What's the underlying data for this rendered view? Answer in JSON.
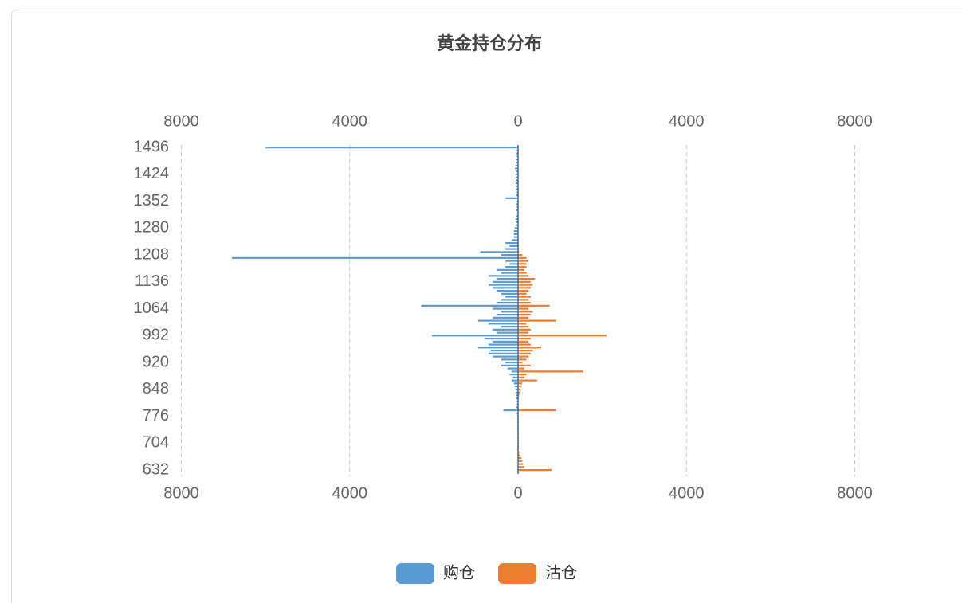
{
  "chart_data": {
    "type": "butterfly",
    "title": "黄金持仓分布",
    "categories": [
      "632",
      null,
      null,
      null,
      null,
      null,
      null,
      null,
      null,
      "704",
      null,
      null,
      null,
      null,
      null,
      null,
      null,
      null,
      "776",
      null,
      null,
      null,
      null,
      null,
      null,
      null,
      null,
      "848",
      null,
      null,
      null,
      null,
      null,
      null,
      null,
      null,
      "920",
      null,
      null,
      null,
      null,
      null,
      null,
      null,
      null,
      "992",
      null,
      null,
      null,
      null,
      null,
      null,
      null,
      null,
      "1064",
      null,
      null,
      null,
      null,
      null,
      null,
      null,
      null,
      "1136",
      null,
      null,
      null,
      null,
      null,
      null,
      null,
      null,
      "1208",
      null,
      null,
      null,
      null,
      null,
      null,
      null,
      null,
      "1280",
      null,
      null,
      null,
      null,
      null,
      null,
      null,
      null,
      "1352",
      null,
      null,
      null,
      null,
      null,
      null,
      null,
      null,
      "1424",
      null,
      null,
      null,
      null,
      null,
      null,
      null,
      null,
      "1496"
    ],
    "series": [
      {
        "name": "购仓",
        "color": "#5b9bd5",
        "side": "left",
        "values": [
          20,
          10,
          10,
          10,
          10,
          10,
          10,
          10,
          10,
          10,
          10,
          10,
          10,
          10,
          20,
          20,
          20,
          20,
          20,
          30,
          350,
          40,
          30,
          30,
          40,
          40,
          50,
          60,
          80,
          100,
          150,
          120,
          200,
          150,
          250,
          400,
          300,
          400,
          600,
          700,
          650,
          950,
          700,
          600,
          800,
          2050,
          500,
          600,
          400,
          700,
          950,
          600,
          500,
          400,
          600,
          2300,
          500,
          400,
          300,
          400,
          500,
          600,
          700,
          600,
          500,
          700,
          400,
          500,
          300,
          200,
          300,
          6800,
          400,
          900,
          300,
          200,
          300,
          150,
          100,
          100,
          100,
          80,
          60,
          50,
          60,
          40,
          30,
          40,
          30,
          40,
          30,
          300,
          40,
          30,
          50,
          40,
          60,
          50,
          40,
          60,
          50,
          70,
          60,
          40,
          50,
          30,
          40,
          30,
          6000
        ]
      },
      {
        "name": "沽仓",
        "color": "#ed7d31",
        "side": "right",
        "values": [
          800,
          150,
          120,
          100,
          80,
          40,
          30,
          20,
          20,
          20,
          20,
          20,
          20,
          10,
          10,
          10,
          10,
          10,
          10,
          10,
          900,
          10,
          10,
          10,
          20,
          30,
          40,
          60,
          80,
          100,
          450,
          150,
          200,
          1550,
          150,
          300,
          100,
          200,
          250,
          300,
          350,
          550,
          300,
          250,
          300,
          2100,
          250,
          300,
          250,
          200,
          900,
          250,
          300,
          350,
          250,
          750,
          300,
          250,
          300,
          200,
          250,
          300,
          350,
          300,
          400,
          250,
          200,
          150,
          200,
          200,
          250,
          200,
          100,
          30,
          20,
          20,
          10,
          10,
          10,
          10,
          0,
          0,
          0,
          0,
          0,
          0,
          0,
          0,
          0,
          0,
          0,
          0,
          0,
          0,
          0,
          0,
          0,
          0,
          0,
          0,
          0,
          0,
          0,
          0,
          0,
          0,
          0,
          0,
          0
        ]
      }
    ],
    "xlim": [
      0,
      8000
    ],
    "xticks": [
      0,
      4000,
      8000
    ],
    "grid": true,
    "legend": "bottom"
  }
}
